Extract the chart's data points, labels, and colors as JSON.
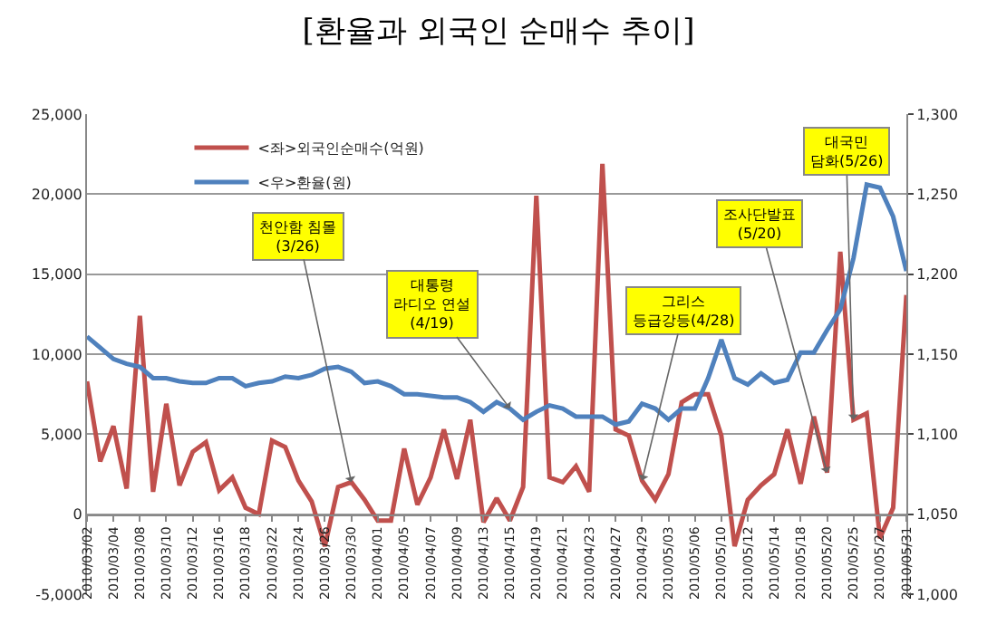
{
  "chart_data": {
    "type": "line",
    "title": "[환율과 외국인 순매수 추이]",
    "categories": [
      "2010/03/02",
      null,
      "2010/03/04",
      null,
      "2010/03/08",
      null,
      "2010/03/10",
      null,
      "2010/03/12",
      null,
      "2010/03/16",
      null,
      "2010/03/18",
      null,
      "2010/03/22",
      null,
      "2010/03/24",
      null,
      "2010/03/26",
      null,
      "2010/03/30",
      null,
      "2010/04/01",
      null,
      "2010/04/05",
      null,
      "2010/04/07",
      null,
      "2010/04/09",
      null,
      "2010/04/13",
      null,
      "2010/04/15",
      null,
      "2010/04/19",
      null,
      "2010/04/21",
      null,
      "2010/04/23",
      null,
      "2010/04/27",
      null,
      "2010/04/29",
      null,
      "2010/05/03",
      null,
      "2010/05/06",
      null,
      "2010/05/10",
      null,
      "2010/05/12",
      null,
      "2010/05/14",
      null,
      "2010/05/18",
      null,
      "2010/05/20",
      null,
      "2010/05/25",
      null,
      "2010/05/27",
      null,
      "2010/05/31"
    ],
    "series": [
      {
        "name": "<좌>외국인순매수(억원)",
        "color": "#c0504d",
        "values": [
          8300,
          3300,
          5500,
          1600,
          12400,
          1400,
          6900,
          1800,
          3900,
          4500,
          1500,
          2300,
          400,
          0,
          4600,
          4200,
          2100,
          800,
          -2000,
          1700,
          2000,
          900,
          -400,
          -400,
          4100,
          600,
          2300,
          5300,
          2200,
          5900,
          -500,
          1000,
          -400,
          1700,
          19900,
          2300,
          2000,
          3000,
          1400,
          21900,
          5300,
          4900,
          2100,
          900,
          2500,
          7000,
          7500,
          7500,
          4900,
          -2000,
          900,
          1800,
          2500,
          5300,
          1900,
          6100,
          2600,
          16400,
          5900,
          6300,
          -1500,
          400,
          13700
        ]
      },
      {
        "name": "<우>환율(원)",
        "color": "#4f81bd",
        "axis": "y2",
        "values": [
          1161,
          1154,
          1147,
          1144,
          1142,
          1135,
          1135,
          1133,
          1132,
          1132,
          1135,
          1135,
          1130,
          1132,
          1133,
          1136,
          1135,
          1137,
          1141,
          1142,
          1139,
          1132,
          1133,
          1130,
          1125,
          1125,
          1124,
          1123,
          1123,
          1120,
          1114,
          1120,
          1116,
          1109,
          1114,
          1118,
          1116,
          1111,
          1111,
          1111,
          1106,
          1108,
          1119,
          1116,
          1109,
          1116,
          1116,
          1135,
          1159,
          1135,
          1131,
          1138,
          1132,
          1134,
          1151,
          1151,
          1165,
          1178,
          1210,
          1256,
          1254,
          1236,
          1202
        ]
      }
    ],
    "ylim": [
      -5000,
      25000
    ],
    "yticks": [
      {
        "value": -5000,
        "label": "-5,000"
      },
      0,
      {
        "value": 5000,
        "label": "5,000"
      },
      {
        "value": 10000,
        "label": "10,000"
      },
      {
        "value": 15000,
        "label": "15,000"
      },
      {
        "value": 20000,
        "label": "20,000"
      },
      {
        "value": 25000,
        "label": "25,000"
      }
    ],
    "y2lim": [
      1000,
      1300
    ],
    "y2ticks": [
      {
        "value": 1000,
        "label": "1,000"
      },
      {
        "value": 1050,
        "label": "1,050"
      },
      {
        "value": 1100,
        "label": "1,100"
      },
      {
        "value": 1150,
        "label": "1,150"
      },
      {
        "value": 1200,
        "label": "1,200"
      },
      {
        "value": 1250,
        "label": "1,250"
      },
      {
        "value": 1300,
        "label": "1,300"
      }
    ],
    "grid": "y",
    "legend": "top left",
    "marker": "none",
    "line_style": "solid",
    "annotations": [
      {
        "text": "천안함 침몰\n(3/26)",
        "x": "2010/03/30",
        "y": 2000
      },
      {
        "text": "대통령\n라디오 연설\n(4/19)",
        "x": "2010/04/15",
        "y": 6600
      },
      {
        "text": "그리스\n등급강등(4/28)",
        "x": "2010/04/29",
        "y": 2100
      },
      {
        "text": "조사단발표\n(5/20)",
        "x": "2010/05/20",
        "y": 2600
      },
      {
        "text": "대국민\n담화(5/26)",
        "x": "2010/05/25",
        "y": 5900
      }
    ]
  }
}
